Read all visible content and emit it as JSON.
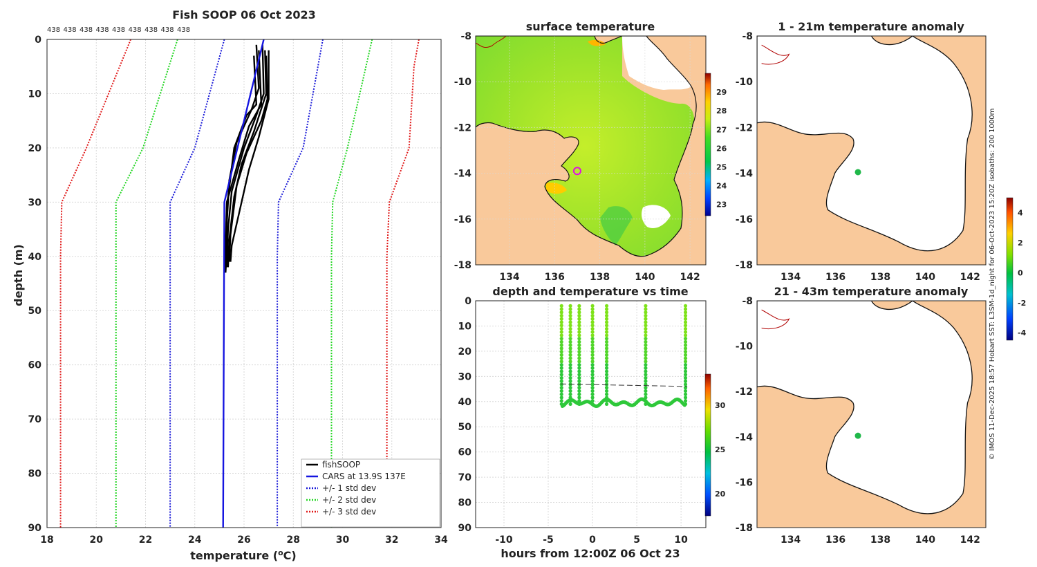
{
  "chart_data": [
    {
      "type": "line",
      "title": "Fish SOOP 06 Oct 2023",
      "count_labels": [
        "438",
        "438",
        "438",
        "438",
        "438",
        "438",
        "438",
        "438",
        "438"
      ],
      "xlabel": "temperature (°C)",
      "ylabel": "depth (m)",
      "xlim": [
        18,
        34
      ],
      "ylim": [
        90,
        0
      ],
      "xticks": [
        18,
        20,
        22,
        24,
        26,
        28,
        30,
        32,
        34
      ],
      "yticks": [
        0,
        10,
        20,
        30,
        40,
        50,
        60,
        70,
        80,
        90
      ],
      "legend": [
        "fishSOOP",
        "CARS at 13.9S 137E",
        "+/- 1 std dev",
        "+/- 2 std dev",
        "+/- 3 std dev"
      ],
      "series": [
        {
          "name": "CARS mean",
          "color": "#1515e0",
          "depth": [
            0,
            30,
            90
          ],
          "temp": [
            26.8,
            25.2,
            25.15
          ]
        },
        {
          "name": "+1 std",
          "color": "#1a1ad8",
          "depth": [
            0,
            20,
            30,
            40,
            90
          ],
          "temp": [
            29.2,
            28.4,
            27.4,
            27.35,
            27.35
          ]
        },
        {
          "name": "-1 std",
          "color": "#1a1ad8",
          "depth": [
            0,
            20,
            30,
            40,
            90
          ],
          "temp": [
            25.2,
            24.0,
            23.0,
            23.0,
            23.0
          ]
        },
        {
          "name": "+2 std",
          "color": "#22d622",
          "depth": [
            0,
            20,
            30,
            40,
            90
          ],
          "temp": [
            31.2,
            30.2,
            29.6,
            29.55,
            29.55
          ]
        },
        {
          "name": "-2 std",
          "color": "#22d622",
          "depth": [
            0,
            20,
            30,
            40,
            90
          ],
          "temp": [
            23.3,
            21.9,
            20.8,
            20.8,
            20.8
          ]
        },
        {
          "name": "+3 std",
          "color": "#e01818",
          "depth": [
            0,
            5,
            20,
            30,
            40,
            90
          ],
          "temp": [
            33.1,
            32.9,
            32.7,
            31.9,
            31.8,
            31.8
          ]
        },
        {
          "name": "-3 std",
          "color": "#e01818",
          "depth": [
            0,
            20,
            30,
            40,
            90
          ],
          "temp": [
            21.4,
            19.6,
            18.6,
            18.55,
            18.55
          ]
        }
      ],
      "fishsoop_profiles": [
        {
          "depth": [
            1,
            10,
            14,
            20,
            28,
            35,
            42
          ],
          "temp": [
            26.75,
            26.8,
            26.5,
            26.0,
            25.5,
            25.35,
            25.3
          ]
        },
        {
          "depth": [
            2,
            12,
            16,
            22,
            30,
            38,
            43
          ],
          "temp": [
            26.6,
            26.7,
            26.2,
            25.8,
            25.3,
            25.25,
            25.2
          ]
        },
        {
          "depth": [
            3,
            11,
            15,
            21,
            27,
            36,
            41
          ],
          "temp": [
            26.9,
            26.95,
            26.7,
            26.1,
            25.7,
            25.45,
            25.4
          ]
        },
        {
          "depth": [
            1,
            9,
            13,
            19,
            26,
            34,
            42
          ],
          "temp": [
            26.5,
            26.6,
            26.3,
            25.7,
            25.4,
            25.3,
            25.25
          ]
        },
        {
          "depth": [
            2,
            10,
            17,
            23,
            29,
            37,
            42
          ],
          "temp": [
            26.85,
            26.9,
            26.4,
            25.9,
            25.6,
            25.4,
            25.35
          ]
        },
        {
          "depth": [
            3,
            12,
            14,
            20,
            31,
            39,
            43
          ],
          "temp": [
            26.4,
            26.5,
            26.1,
            25.6,
            25.3,
            25.3,
            25.25
          ]
        },
        {
          "depth": [
            2,
            11,
            18,
            24,
            32,
            38,
            41
          ],
          "temp": [
            27.0,
            27.0,
            26.6,
            26.2,
            25.8,
            25.5,
            25.45
          ]
        }
      ]
    },
    {
      "type": "heatmap",
      "title": "surface temperature",
      "xticks": [
        134,
        136,
        138,
        140,
        142
      ],
      "yticks": [
        -8,
        -10,
        -12,
        -14,
        -16,
        -18
      ],
      "xlim": [
        132.5,
        142.7
      ],
      "ylim": [
        -18,
        -8
      ],
      "colorbar_ticks": [
        23,
        24,
        25,
        26,
        27,
        28,
        29
      ],
      "colorbar_range": [
        22.4,
        30.0
      ],
      "marker": {
        "lon": 137.0,
        "lat": -13.9
      }
    },
    {
      "type": "scatter",
      "title": "depth and temperature vs time",
      "xlabel": "hours from 12:00Z 06 Oct 23",
      "xlim": [
        -13.2,
        12.8
      ],
      "ylim": [
        90,
        0
      ],
      "xticks": [
        -10,
        -5,
        0,
        5,
        10
      ],
      "yticks": [
        0,
        10,
        20,
        30,
        40,
        50,
        60,
        70,
        80,
        90
      ],
      "colorbar_ticks": [
        20,
        25,
        30
      ],
      "colorbar_range": [
        17.5,
        33.5
      ],
      "dashed_line": {
        "hours": [
          -3.6,
          10.7
        ],
        "depth": [
          33,
          34
        ]
      },
      "casts_hours": [
        -3.5,
        -2.5,
        -1.5,
        0,
        1.6,
        6.0,
        10.5
      ]
    },
    {
      "type": "heatmap",
      "title": "1 - 21m temperature anomaly",
      "xticks": [
        134,
        136,
        138,
        140,
        142
      ],
      "yticks": [
        -8,
        -10,
        -12,
        -14,
        -16,
        -18
      ],
      "marker": {
        "lon": 137.0,
        "lat": -13.95
      }
    },
    {
      "type": "heatmap",
      "title": "21 - 43m temperature anomaly",
      "xticks": [
        134,
        136,
        138,
        140,
        142
      ],
      "yticks": [
        -8,
        -10,
        -12,
        -14,
        -16,
        -18
      ],
      "marker": {
        "lon": 137.0,
        "lat": -13.95
      },
      "colorbar_ticks": [
        -4,
        -2,
        0,
        2,
        4
      ],
      "colorbar_range": [
        -4.5,
        5.0
      ]
    }
  ],
  "credit": "© IMOS 11-Dec-2025 18:57 Hobart SST: L3SM-1d_night for 06-Oct-2023 15:20Z isobaths: 200  1000m",
  "colors": {
    "land": "#f9c99b",
    "coast": "#111111",
    "isobath": "#b00000"
  }
}
